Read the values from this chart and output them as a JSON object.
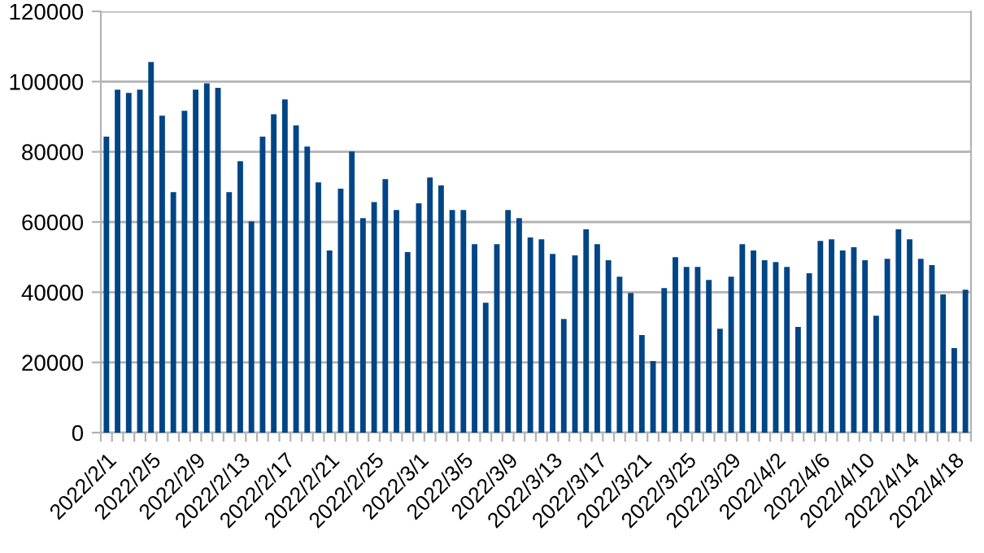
{
  "chart_data": {
    "type": "bar",
    "categories": [
      "2022/2/1",
      null,
      null,
      null,
      "2022/2/5",
      null,
      null,
      null,
      "2022/2/9",
      null,
      null,
      null,
      "2022/2/13",
      null,
      null,
      null,
      "2022/2/17",
      null,
      null,
      null,
      "2022/2/21",
      null,
      null,
      null,
      "2022/2/25",
      null,
      null,
      null,
      "2022/3/1",
      null,
      null,
      null,
      "2022/3/5",
      null,
      null,
      null,
      "2022/3/9",
      null,
      null,
      null,
      "2022/3/13",
      null,
      null,
      null,
      "2022/3/17",
      null,
      null,
      null,
      "2022/3/21",
      null,
      null,
      null,
      "2022/3/25",
      null,
      null,
      null,
      "2022/3/29",
      null,
      null,
      null,
      "2022/4/2",
      null,
      null,
      null,
      "2022/4/6",
      null,
      null,
      null,
      "2022/4/10",
      null,
      null,
      null,
      "2022/4/14",
      null,
      null,
      null,
      "2022/4/18",
      null
    ],
    "values": [
      84300,
      97700,
      96800,
      97700,
      105600,
      90300,
      68500,
      91700,
      97700,
      99500,
      98200,
      68500,
      77300,
      60200,
      84300,
      90700,
      94900,
      87500,
      81500,
      71300,
      51900,
      69500,
      80100,
      61100,
      65700,
      72200,
      63400,
      51400,
      65300,
      72700,
      70400,
      63400,
      63400,
      53700,
      37000,
      53700,
      63400,
      61100,
      55600,
      55100,
      50900,
      32400,
      50500,
      57900,
      53700,
      49100,
      44400,
      39800,
      27800,
      20400,
      41200,
      50000,
      47200,
      47200,
      43500,
      29600,
      44400,
      53700,
      51900,
      49100,
      48600,
      47200,
      30100,
      45400,
      54600,
      55100,
      51900,
      52800,
      49100,
      33300,
      49500,
      57900,
      55100,
      49500,
      47700,
      39400,
      24100,
      40700
    ],
    "color": "#004586",
    "ylim": [
      0,
      120000
    ],
    "yticks": [
      0,
      20000,
      40000,
      60000,
      80000,
      100000,
      120000
    ],
    "grid": "y",
    "legend": false
  }
}
